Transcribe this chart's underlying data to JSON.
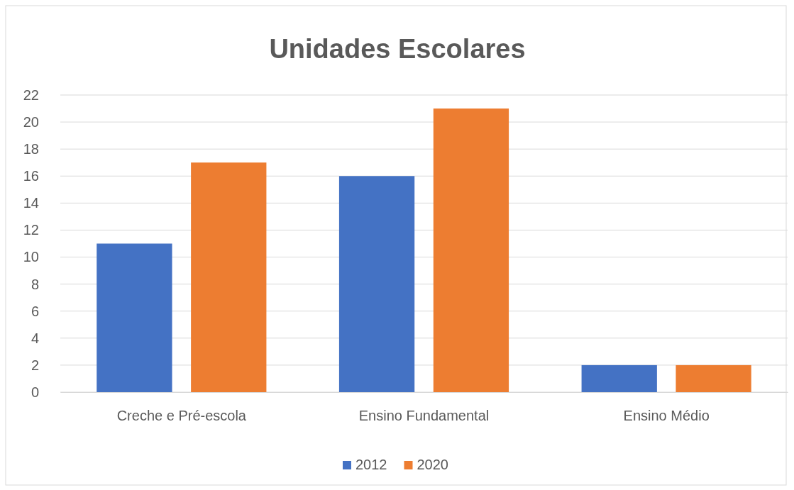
{
  "chart_data": {
    "type": "bar",
    "title": "Unidades Escolares",
    "categories": [
      "Creche e Pré-escola",
      "Ensino Fundamental",
      "Ensino Médio"
    ],
    "series": [
      {
        "name": "2012",
        "color": "#4472c4",
        "values": [
          11,
          16,
          2
        ]
      },
      {
        "name": "2020",
        "color": "#ed7d31",
        "values": [
          17,
          21,
          2
        ]
      }
    ],
    "ylim": [
      0,
      22
    ],
    "yticks": [
      0,
      2,
      4,
      6,
      8,
      10,
      12,
      14,
      16,
      18,
      20,
      22
    ],
    "grid": "y",
    "legend": "bottom"
  }
}
